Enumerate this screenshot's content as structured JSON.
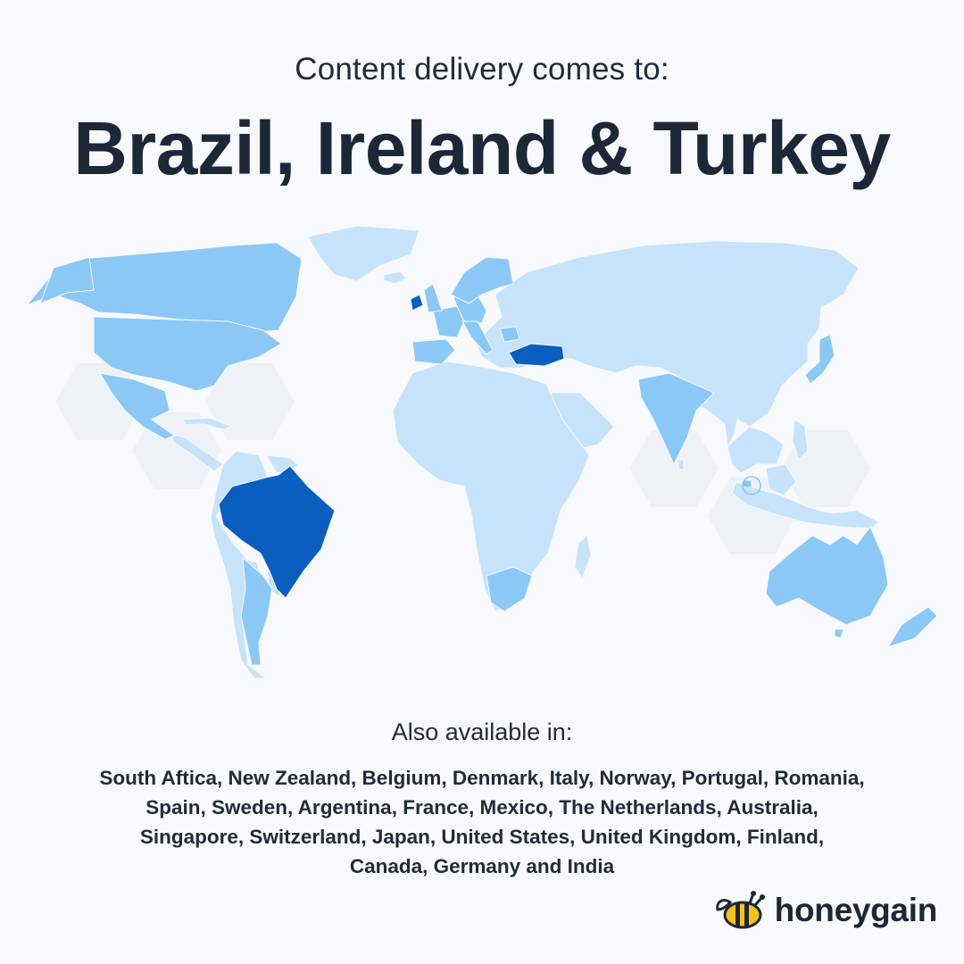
{
  "header": {
    "subtitle": "Content delivery comes to:",
    "headline": "Brazil, Ireland & Turkey"
  },
  "map": {
    "colors": {
      "background": "#f7f9fc",
      "hexagon": "#eef1f5",
      "unavailable": "#c6e3fb",
      "available": "#8bc8f6",
      "new": "#0a5ec0"
    },
    "new_countries": [
      "Brazil",
      "Ireland",
      "Turkey"
    ]
  },
  "also": {
    "label": "Also available in:",
    "lines": [
      "South Aftica, New Zealand, Belgium, Denmark, Italy, Norway, Portugal, Romania,",
      "Spain, Sweden, Argentina, France, Mexico, The Netherlands, Australia,",
      "Singapore, Switzerland, Japan, United States, United Kingdom, Finland,",
      "Canada, Germany and India"
    ]
  },
  "brand": {
    "name": "honeygain",
    "logo_icon": "bee-icon"
  }
}
